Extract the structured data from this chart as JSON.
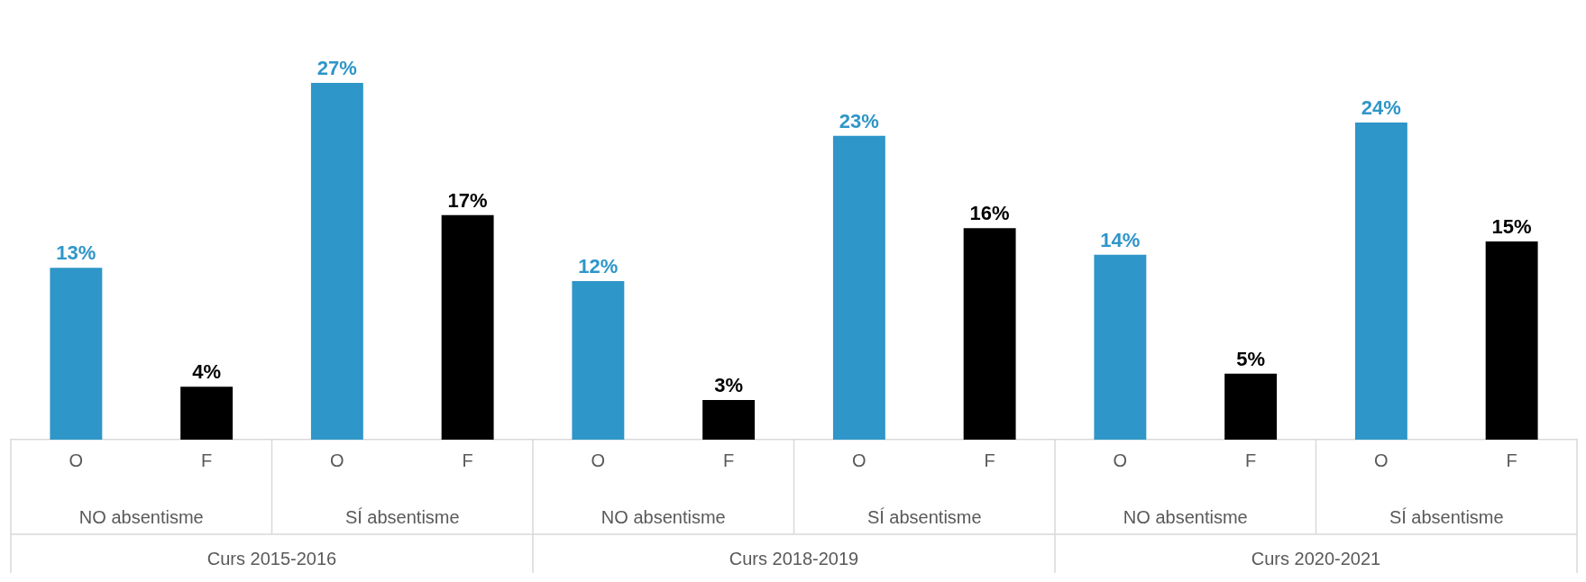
{
  "chart_data": {
    "type": "bar",
    "categories": [
      "O",
      "F",
      "O",
      "F",
      "O",
      "F",
      "O",
      "F",
      "O",
      "F",
      "O",
      "F"
    ],
    "values": [
      13,
      4,
      27,
      17,
      12,
      3,
      23,
      16,
      14,
      5,
      24,
      15
    ],
    "colors": [
      "#2e96c8",
      "#000000",
      "#2e96c8",
      "#000000",
      "#2e96c8",
      "#000000",
      "#2e96c8",
      "#000000",
      "#2e96c8",
      "#000000",
      "#2e96c8",
      "#000000"
    ],
    "value_labels": [
      "13%",
      "4%",
      "27%",
      "17%",
      "12%",
      "3%",
      "23%",
      "16%",
      "14%",
      "5%",
      "24%",
      "15%"
    ],
    "grid": false,
    "legend": false,
    "annotations": [
      "NO absentisme",
      "SÍ absentisme",
      "NO absentisme",
      "SÍ absentisme",
      "NO absentisme",
      "SÍ absentisme",
      "Curs 2015-2016",
      "Curs 2018-2019",
      "Curs 2020-2021"
    ]
  }
}
